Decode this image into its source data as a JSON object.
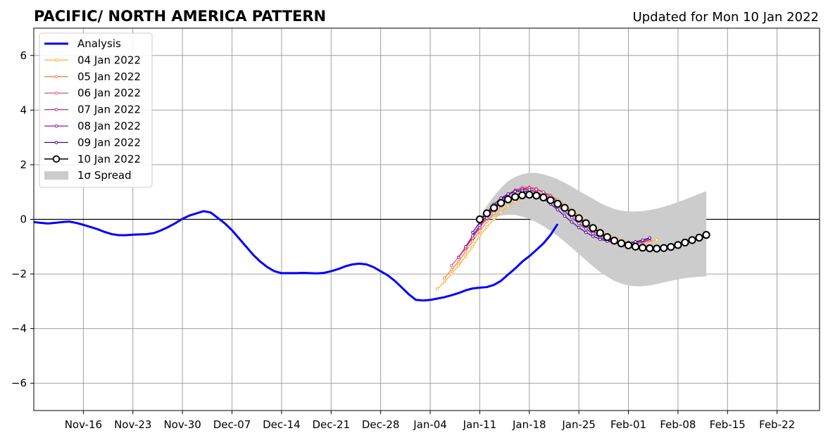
{
  "chart_data": {
    "type": "line",
    "title": "PACIFIC/ NORTH AMERICA PATTERN",
    "subtitle": "Updated for Mon 10 Jan 2022",
    "xlabel": "",
    "ylabel": "",
    "ylim": [
      -7,
      7
    ],
    "xlim": [
      "2021-11-09",
      "2022-02-28"
    ],
    "y_ticks": [
      -6,
      -4,
      -2,
      0,
      2,
      4,
      6
    ],
    "y_tick_labels": [
      "−6",
      "−4",
      "−2",
      "0",
      "2",
      "4",
      "6"
    ],
    "x_ticks": [
      "2021-11-16",
      "2021-11-23",
      "2021-11-30",
      "2021-12-07",
      "2021-12-14",
      "2021-12-21",
      "2021-12-28",
      "2022-01-04",
      "2022-01-11",
      "2022-01-18",
      "2022-01-25",
      "2022-02-01",
      "2022-02-08",
      "2022-02-15",
      "2022-02-22"
    ],
    "x_tick_labels": [
      "Nov-16",
      "Nov-23",
      "Nov-30",
      "Dec-07",
      "Dec-14",
      "Dec-21",
      "Dec-28",
      "Jan-04",
      "Jan-11",
      "Jan-18",
      "Jan-25",
      "Feb-01",
      "Feb-08",
      "Feb-15",
      "Feb-22"
    ],
    "grid": true,
    "zero_line": true,
    "legend_position": "top-left",
    "legend": [
      {
        "label": "Analysis",
        "color": "#0000ff",
        "style": "thick-line"
      },
      {
        "label": "04 Jan 2022",
        "color": "#fcb32e",
        "style": "line-dot"
      },
      {
        "label": "05 Jan 2022",
        "color": "#f1844b",
        "style": "line-dot"
      },
      {
        "label": "06 Jan 2022",
        "color": "#e0636b",
        "style": "line-dot"
      },
      {
        "label": "07 Jan 2022",
        "color": "#b93289",
        "style": "line-dot"
      },
      {
        "label": "08 Jan 2022",
        "color": "#8c1ba3",
        "style": "line-dot"
      },
      {
        "label": "09 Jan 2022",
        "color": "#4b0a9b",
        "style": "line-dot"
      },
      {
        "label": "10 Jan 2022",
        "color": "#000000",
        "style": "open-circle"
      },
      {
        "label": "1σ Spread",
        "color": "#cccccc",
        "style": "patch"
      }
    ],
    "analysis": {
      "name": "Analysis",
      "color": "#0000ff",
      "start_date": "2021-11-09",
      "values": [
        -0.1,
        -0.13,
        -0.15,
        -0.13,
        -0.1,
        -0.08,
        -0.13,
        -0.2,
        -0.28,
        -0.36,
        -0.46,
        -0.54,
        -0.58,
        -0.58,
        -0.56,
        -0.55,
        -0.54,
        -0.5,
        -0.4,
        -0.28,
        -0.14,
        0.02,
        0.14,
        0.22,
        0.3,
        0.25,
        0.05,
        -0.15,
        -0.4,
        -0.7,
        -1.0,
        -1.3,
        -1.55,
        -1.75,
        -1.9,
        -1.97,
        -1.97,
        -1.97,
        -1.96,
        -1.97,
        -1.98,
        -1.96,
        -1.9,
        -1.82,
        -1.72,
        -1.65,
        -1.62,
        -1.65,
        -1.75,
        -1.9,
        -2.05,
        -2.25,
        -2.5,
        -2.75,
        -2.95,
        -2.97,
        -2.95,
        -2.9,
        -2.85,
        -2.78,
        -2.7,
        -2.6,
        -2.53,
        -2.5,
        -2.48,
        -2.4,
        -2.25,
        -2.02,
        -1.8,
        -1.55,
        -1.35,
        -1.12,
        -0.88,
        -0.57,
        -0.17
      ]
    },
    "forecasts": [
      {
        "name": "04 Jan 2022",
        "color": "#fcb32e",
        "start_date": "2022-01-05",
        "values": [
          -2.55,
          -2.3,
          -2.0,
          -1.7,
          -1.35,
          -1.0,
          -0.6,
          -0.28,
          0.0,
          0.25,
          0.48,
          0.65,
          0.78,
          0.87,
          0.9,
          0.88,
          0.8,
          0.68,
          0.53,
          0.35,
          0.15,
          -0.05,
          -0.25,
          -0.42,
          -0.56,
          -0.68,
          -0.77,
          -0.83,
          -0.85,
          -0.85,
          -0.82,
          -0.75
        ]
      },
      {
        "name": "05 Jan 2022",
        "color": "#f1844b",
        "start_date": "2022-01-06",
        "values": [
          -2.15,
          -1.85,
          -1.55,
          -1.18,
          -0.8,
          -0.43,
          -0.08,
          0.22,
          0.48,
          0.7,
          0.88,
          1.0,
          1.07,
          1.07,
          1.0,
          0.88,
          0.72,
          0.52,
          0.3,
          0.1,
          -0.12,
          -0.32,
          -0.5,
          -0.64,
          -0.75,
          -0.83,
          -0.87,
          -0.87,
          -0.84,
          -0.76
        ]
      },
      {
        "name": "06 Jan 2022",
        "color": "#e0636b",
        "start_date": "2022-01-07",
        "values": [
          -1.7,
          -1.38,
          -1.0,
          -0.62,
          -0.25,
          0.1,
          0.42,
          0.7,
          0.92,
          1.08,
          1.17,
          1.18,
          1.12,
          1.0,
          0.85,
          0.66,
          0.45,
          0.23,
          0.0,
          -0.22,
          -0.42,
          -0.58,
          -0.7,
          -0.8,
          -0.86,
          -0.88,
          -0.88,
          -0.84,
          -0.76
        ]
      },
      {
        "name": "07 Jan 2022",
        "color": "#b93289",
        "start_date": "2022-01-08",
        "values": [
          -1.4,
          -1.05,
          -0.68,
          -0.3,
          0.05,
          0.38,
          0.67,
          0.88,
          1.03,
          1.12,
          1.15,
          1.1,
          1.0,
          0.85,
          0.65,
          0.45,
          0.22,
          -0.02,
          -0.24,
          -0.43,
          -0.58,
          -0.7,
          -0.79,
          -0.84,
          -0.85,
          -0.85,
          -0.82,
          -0.75
        ]
      },
      {
        "name": "08 Jan 2022",
        "color": "#8c1ba3",
        "start_date": "2022-01-09",
        "values": [
          -1.0,
          -0.6,
          -0.22,
          0.15,
          0.47,
          0.73,
          0.92,
          1.05,
          1.1,
          1.08,
          1.0,
          0.87,
          0.7,
          0.5,
          0.28,
          0.06,
          -0.15,
          -0.35,
          -0.52,
          -0.66,
          -0.76,
          -0.82,
          -0.85,
          -0.85,
          -0.83,
          -0.78,
          -0.7
        ]
      },
      {
        "name": "09 Jan 2022",
        "color": "#4b0a9b",
        "start_date": "2022-01-10",
        "values": [
          -0.48,
          -0.1,
          0.25,
          0.55,
          0.78,
          0.93,
          1.02,
          1.04,
          1.0,
          0.9,
          0.75,
          0.56,
          0.35,
          0.12,
          -0.1,
          -0.3,
          -0.48,
          -0.62,
          -0.73,
          -0.8,
          -0.85,
          -0.86,
          -0.85,
          -0.82,
          -0.76,
          -0.68
        ]
      }
    ],
    "current_forecast": {
      "name": "10 Jan 2022",
      "color": "#000000",
      "start_date": "2022-01-11",
      "values": [
        0.0,
        0.22,
        0.42,
        0.6,
        0.73,
        0.82,
        0.88,
        0.9,
        0.87,
        0.8,
        0.7,
        0.57,
        0.42,
        0.24,
        0.04,
        -0.14,
        -0.32,
        -0.5,
        -0.65,
        -0.78,
        -0.88,
        -0.95,
        -1.0,
        -1.04,
        -1.06,
        -1.07,
        -1.05,
        -1.01,
        -0.94,
        -0.85,
        -0.76,
        -0.67,
        -0.57
      ]
    },
    "spread": {
      "name": "1σ Spread",
      "color": "#cccccc",
      "start_date": "2022-01-11",
      "upper": [
        0.05,
        0.5,
        0.85,
        1.15,
        1.4,
        1.55,
        1.65,
        1.7,
        1.7,
        1.65,
        1.57,
        1.47,
        1.34,
        1.2,
        1.04,
        0.9,
        0.75,
        0.6,
        0.48,
        0.38,
        0.32,
        0.29,
        0.29,
        0.3,
        0.34,
        0.39,
        0.46,
        0.54,
        0.63,
        0.73,
        0.83,
        0.93,
        1.03
      ],
      "lower": [
        -0.1,
        -0.01,
        0.08,
        0.14,
        0.17,
        0.16,
        0.1,
        0.02,
        -0.1,
        -0.25,
        -0.42,
        -0.61,
        -0.82,
        -1.04,
        -1.27,
        -1.5,
        -1.72,
        -1.93,
        -2.1,
        -2.25,
        -2.35,
        -2.42,
        -2.45,
        -2.45,
        -2.42,
        -2.37,
        -2.31,
        -2.25,
        -2.2,
        -2.15,
        -2.12,
        -2.1,
        -2.09
      ]
    }
  }
}
